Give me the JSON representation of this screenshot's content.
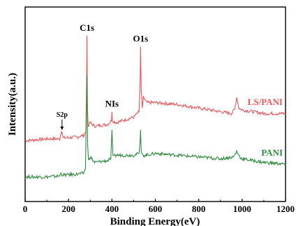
{
  "chart_data": {
    "type": "line",
    "title": "",
    "xlabel": "Binding Energy(eV)",
    "ylabel": "Intensity(a.u.)",
    "xlim": [
      0,
      1200
    ],
    "x_ticks": [
      "0",
      "200",
      "400",
      "600",
      "800",
      "1000",
      "1200"
    ],
    "y_ticks": [],
    "grid": false,
    "legend": "none",
    "annotations": [
      {
        "text": "S2p",
        "x": 170,
        "arrow": true
      },
      {
        "text": "C1s",
        "x": 285
      },
      {
        "text": "NIs",
        "x": 400
      },
      {
        "text": "O1s",
        "x": 532
      }
    ],
    "series": [
      {
        "name": "LS/PANI",
        "color": "#e8565a",
        "x": [
          0,
          100,
          160,
          168,
          175,
          240,
          270,
          280,
          283,
          285,
          287,
          290,
          300,
          320,
          380,
          398,
          400,
          402,
          420,
          500,
          525,
          530,
          532,
          535,
          540,
          545,
          560,
          600,
          700,
          800,
          900,
          950,
          965,
          975,
          985,
          1000,
          1100,
          1200
        ],
        "values": [
          2.2,
          2.3,
          2.3,
          2.8,
          2.35,
          2.4,
          2.5,
          2.7,
          5.3,
          8.0,
          4.2,
          3.0,
          3.2,
          3.0,
          3.1,
          3.3,
          3.8,
          3.3,
          3.2,
          3.5,
          3.8,
          5.6,
          7.4,
          5.0,
          4.0,
          4.6,
          4.3,
          4.3,
          4.2,
          4.0,
          3.8,
          3.7,
          3.9,
          4.6,
          4.0,
          3.9,
          3.7,
          3.7
        ]
      },
      {
        "name": "PANI",
        "color": "#2e8b3e",
        "x": [
          0,
          100,
          160,
          165,
          175,
          240,
          270,
          278,
          282,
          285,
          288,
          292,
          300,
          320,
          380,
          395,
          400,
          405,
          420,
          500,
          525,
          530,
          532,
          535,
          540,
          560,
          600,
          700,
          800,
          900,
          960,
          975,
          990,
          1000,
          1100,
          1200
        ],
        "values": [
          0.2,
          0.2,
          0.25,
          0.4,
          0.3,
          0.35,
          0.4,
          0.7,
          3.5,
          5.8,
          2.0,
          1.1,
          1.3,
          1.0,
          1.1,
          1.2,
          2.8,
          1.3,
          1.4,
          1.4,
          1.5,
          2.2,
          2.8,
          1.6,
          1.4,
          1.4,
          1.5,
          1.4,
          1.3,
          1.2,
          1.3,
          1.6,
          1.3,
          1.2,
          1.0,
          0.9
        ]
      }
    ]
  }
}
